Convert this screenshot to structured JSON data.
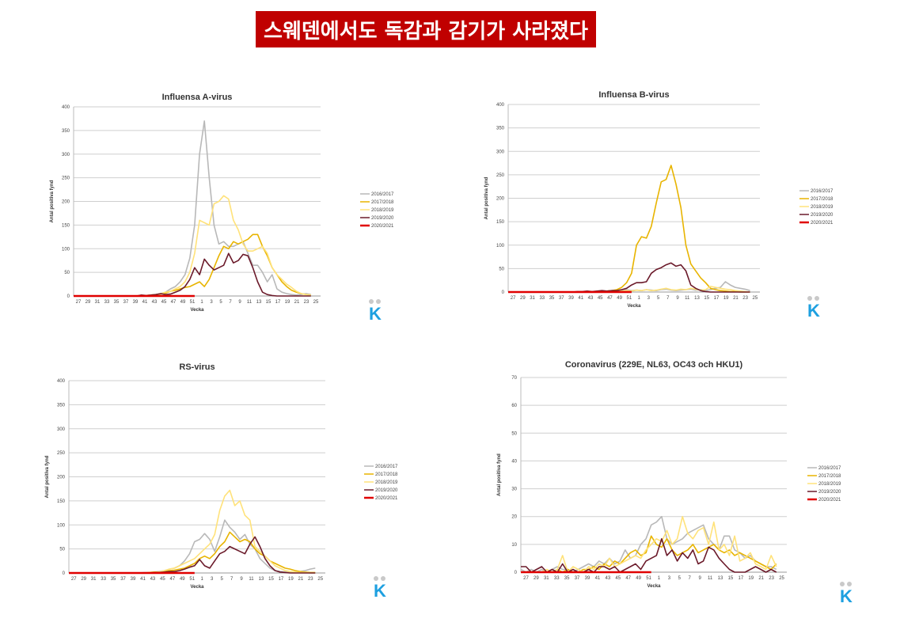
{
  "banner": {
    "title": "스웨덴에서도 독감과 감기가 사라졌다"
  },
  "logo_text": "K",
  "colors": {
    "banner_bg": "#c00000",
    "s2016": "#b8b8b8",
    "s2017": "#e8b400",
    "s2018": "#ffe27a",
    "s2019": "#6b1a2a",
    "s2020": "#e00000"
  },
  "chart_data": [
    {
      "type": "line",
      "title": "Influensa A-virus",
      "xlabel": "Vecka",
      "ylabel": "Antal positiva fynd",
      "ylim": [
        0,
        400
      ],
      "yticks": [
        0,
        50,
        100,
        150,
        200,
        250,
        300,
        350,
        400
      ],
      "xtick_labels": [
        "27",
        "29",
        "31",
        "33",
        "35",
        "37",
        "39",
        "41",
        "43",
        "45",
        "47",
        "49",
        "51",
        "1",
        "3",
        "5",
        "7",
        "9",
        "11",
        "13",
        "15",
        "17",
        "19",
        "21",
        "23",
        "25"
      ],
      "legend_position": "right",
      "series": [
        {
          "name": "2016/2017",
          "values": [
            0,
            0,
            0,
            0,
            0,
            0,
            0,
            0,
            0,
            0,
            0,
            0,
            0,
            0,
            1,
            1,
            2,
            3,
            5,
            8,
            15,
            20,
            30,
            45,
            80,
            150,
            300,
            370,
            250,
            150,
            110,
            115,
            105,
            105,
            110,
            115,
            90,
            65,
            65,
            50,
            30,
            45,
            15,
            8,
            5,
            3,
            2,
            3,
            5,
            3
          ]
        },
        {
          "name": "2017/2018",
          "values": [
            0,
            0,
            0,
            0,
            0,
            0,
            0,
            0,
            0,
            0,
            0,
            0,
            0,
            0,
            0,
            1,
            2,
            3,
            4,
            6,
            10,
            12,
            15,
            18,
            20,
            25,
            30,
            20,
            35,
            60,
            85,
            105,
            100,
            115,
            110,
            115,
            120,
            130,
            130,
            105,
            85,
            60,
            45,
            30,
            20,
            12,
            8,
            5,
            3,
            2
          ]
        },
        {
          "name": "2018/2019",
          "values": [
            0,
            0,
            0,
            0,
            0,
            0,
            0,
            0,
            0,
            0,
            0,
            0,
            0,
            0,
            1,
            1,
            2,
            3,
            5,
            8,
            10,
            15,
            20,
            30,
            50,
            90,
            160,
            155,
            150,
            195,
            200,
            212,
            205,
            160,
            140,
            110,
            95,
            95,
            100,
            105,
            90,
            60,
            45,
            35,
            25,
            18,
            10,
            5,
            3,
            2
          ]
        },
        {
          "name": "2019/2020",
          "values": [
            0,
            0,
            0,
            0,
            0,
            0,
            0,
            0,
            0,
            0,
            0,
            0,
            0,
            0,
            2,
            1,
            2,
            3,
            5,
            3,
            4,
            8,
            12,
            20,
            35,
            60,
            45,
            78,
            65,
            55,
            60,
            65,
            90,
            70,
            75,
            88,
            85,
            60,
            30,
            8,
            3,
            1,
            0,
            0,
            0,
            0,
            0,
            0,
            0,
            0
          ]
        },
        {
          "name": "2020/2021",
          "values": [
            0,
            0,
            0,
            0,
            0,
            0,
            0,
            0,
            0,
            0,
            0,
            0,
            0,
            0,
            0,
            0,
            0,
            0,
            0,
            0,
            0,
            0,
            0,
            0,
            0,
            0
          ]
        }
      ]
    },
    {
      "type": "line",
      "title": "Influensa B-virus",
      "xlabel": "Vecka",
      "ylabel": "Antal positiva fynd",
      "ylim": [
        0,
        400
      ],
      "yticks": [
        0,
        50,
        100,
        150,
        200,
        250,
        300,
        350,
        400
      ],
      "xtick_labels": [
        "27",
        "29",
        "31",
        "33",
        "35",
        "37",
        "39",
        "41",
        "43",
        "45",
        "47",
        "49",
        "51",
        "1",
        "3",
        "5",
        "7",
        "9",
        "11",
        "13",
        "15",
        "17",
        "19",
        "21",
        "23",
        "25"
      ],
      "legend_position": "right",
      "series": [
        {
          "name": "2016/2017",
          "values": [
            0,
            0,
            0,
            0,
            0,
            0,
            0,
            0,
            0,
            0,
            0,
            0,
            0,
            0,
            0,
            0,
            0,
            0,
            1,
            2,
            2,
            3,
            3,
            4,
            5,
            3,
            4,
            3,
            5,
            4,
            3,
            5,
            6,
            4,
            3,
            4,
            5,
            6,
            4,
            5,
            3,
            5,
            8,
            10,
            22,
            15,
            10,
            8,
            6,
            3
          ]
        },
        {
          "name": "2017/2018",
          "values": [
            0,
            0,
            0,
            0,
            0,
            0,
            0,
            0,
            0,
            0,
            0,
            0,
            0,
            0,
            0,
            0,
            0,
            0,
            1,
            2,
            2,
            3,
            5,
            10,
            20,
            40,
            100,
            118,
            115,
            140,
            190,
            235,
            240,
            270,
            230,
            180,
            100,
            60,
            45,
            30,
            20,
            8,
            5,
            3,
            2,
            1,
            1,
            0,
            0,
            0
          ]
        },
        {
          "name": "2018/2019",
          "values": [
            0,
            0,
            0,
            0,
            0,
            0,
            0,
            0,
            0,
            0,
            0,
            0,
            0,
            0,
            0,
            0,
            0,
            0,
            0,
            1,
            1,
            1,
            2,
            2,
            3,
            2,
            4,
            3,
            5,
            3,
            4,
            6,
            8,
            5,
            4,
            6,
            5,
            8,
            6,
            4,
            5,
            12,
            10,
            8,
            6,
            5,
            3,
            2,
            1,
            0
          ]
        },
        {
          "name": "2019/2020",
          "values": [
            0,
            0,
            0,
            0,
            0,
            0,
            0,
            0,
            0,
            0,
            0,
            0,
            0,
            0,
            1,
            1,
            2,
            1,
            2,
            3,
            2,
            3,
            3,
            5,
            8,
            15,
            20,
            20,
            22,
            40,
            48,
            52,
            58,
            62,
            55,
            58,
            45,
            15,
            8,
            3,
            1,
            0,
            0,
            0,
            0,
            0,
            0,
            0,
            0,
            0
          ]
        },
        {
          "name": "2020/2021",
          "values": [
            0,
            0,
            0,
            0,
            0,
            0,
            0,
            0,
            0,
            0,
            0,
            0,
            0,
            0,
            0,
            0,
            0,
            0,
            0,
            0,
            0,
            0,
            0,
            0,
            0,
            0
          ]
        }
      ]
    },
    {
      "type": "line",
      "title": "RS-virus",
      "xlabel": "Vecka",
      "ylabel": "Antal positiva fynd",
      "ylim": [
        0,
        400
      ],
      "yticks": [
        0,
        50,
        100,
        150,
        200,
        250,
        300,
        350,
        400
      ],
      "xtick_labels": [
        "27",
        "29",
        "31",
        "33",
        "35",
        "37",
        "39",
        "41",
        "43",
        "45",
        "47",
        "49",
        "51",
        "1",
        "3",
        "5",
        "7",
        "9",
        "11",
        "13",
        "15",
        "17",
        "19",
        "21",
        "23",
        "25"
      ],
      "legend_position": "right",
      "series": [
        {
          "name": "2016/2017",
          "values": [
            0,
            0,
            0,
            0,
            0,
            0,
            0,
            0,
            0,
            0,
            0,
            0,
            0,
            0,
            0,
            1,
            1,
            2,
            3,
            5,
            8,
            10,
            15,
            25,
            40,
            65,
            70,
            82,
            70,
            45,
            75,
            110,
            95,
            85,
            70,
            80,
            60,
            50,
            30,
            20,
            10,
            5,
            3,
            2,
            1,
            2,
            3,
            5,
            8,
            10
          ]
        },
        {
          "name": "2017/2018",
          "values": [
            0,
            0,
            0,
            0,
            0,
            0,
            0,
            0,
            0,
            0,
            0,
            0,
            0,
            0,
            0,
            0,
            1,
            2,
            2,
            3,
            5,
            6,
            8,
            10,
            15,
            20,
            30,
            35,
            30,
            40,
            55,
            65,
            85,
            75,
            65,
            70,
            65,
            50,
            40,
            35,
            25,
            20,
            15,
            10,
            8,
            5,
            3,
            2,
            1,
            1
          ]
        },
        {
          "name": "2018/2019",
          "values": [
            0,
            0,
            0,
            0,
            0,
            0,
            0,
            0,
            0,
            0,
            0,
            0,
            0,
            0,
            0,
            0,
            0,
            1,
            2,
            5,
            8,
            10,
            15,
            20,
            25,
            30,
            40,
            50,
            60,
            80,
            130,
            160,
            172,
            140,
            150,
            120,
            110,
            55,
            45,
            35,
            25,
            15,
            10,
            5,
            3,
            2,
            1,
            1,
            0,
            0
          ]
        },
        {
          "name": "2019/2020",
          "values": [
            0,
            0,
            0,
            0,
            0,
            0,
            0,
            0,
            0,
            0,
            0,
            0,
            0,
            0,
            0,
            0,
            0,
            1,
            1,
            2,
            3,
            3,
            5,
            8,
            12,
            15,
            28,
            15,
            10,
            25,
            40,
            45,
            55,
            50,
            45,
            40,
            60,
            75,
            55,
            30,
            15,
            5,
            2,
            1,
            0,
            0,
            0,
            0,
            0,
            0
          ]
        },
        {
          "name": "2020/2021",
          "values": [
            0,
            0,
            0,
            0,
            0,
            0,
            0,
            0,
            0,
            0,
            0,
            0,
            0,
            0,
            0,
            0,
            0,
            0,
            0,
            0,
            0,
            0,
            0,
            0,
            0,
            0
          ]
        }
      ]
    },
    {
      "type": "line",
      "title": "Coronavirus (229E, NL63, OC43 och HKU1)",
      "xlabel": "Vecka",
      "ylabel": "Antal positiva fynd",
      "ylim": [
        0,
        70
      ],
      "yticks": [
        0,
        10,
        20,
        30,
        40,
        50,
        60,
        70
      ],
      "xtick_labels": [
        "27",
        "29",
        "31",
        "33",
        "35",
        "37",
        "39",
        "41",
        "43",
        "45",
        "47",
        "49",
        "51",
        "1",
        "3",
        "5",
        "7",
        "9",
        "11",
        "13",
        "15",
        "17",
        "19",
        "21",
        "23",
        "25"
      ],
      "legend_position": "right",
      "series": [
        {
          "name": "2016/2017",
          "values": [
            1,
            0,
            1,
            0,
            1,
            0,
            1,
            2,
            1,
            1,
            0,
            1,
            2,
            3,
            2,
            4,
            3,
            5,
            3,
            4,
            8,
            5,
            6,
            10,
            12,
            17,
            18,
            20,
            12,
            10,
            11,
            12,
            14,
            15,
            16,
            17,
            12,
            10,
            8,
            13,
            13,
            8,
            7,
            5,
            6,
            4,
            3,
            2,
            2,
            1
          ]
        },
        {
          "name": "2017/2018",
          "values": [
            0,
            0,
            0,
            0,
            0,
            0,
            0,
            1,
            0,
            1,
            0,
            0,
            1,
            1,
            2,
            1,
            3,
            2,
            4,
            3,
            5,
            7,
            8,
            6,
            7,
            13,
            10,
            9,
            12,
            8,
            6,
            7,
            8,
            10,
            7,
            8,
            9,
            10,
            8,
            7,
            8,
            6,
            7,
            6,
            5,
            4,
            3,
            2,
            1,
            3
          ]
        },
        {
          "name": "2018/2019",
          "values": [
            0,
            0,
            0,
            0,
            0,
            1,
            0,
            1,
            6,
            0,
            2,
            1,
            0,
            2,
            1,
            3,
            2,
            5,
            2,
            3,
            4,
            5,
            6,
            5,
            8,
            10,
            12,
            11,
            15,
            10,
            12,
            20,
            14,
            12,
            15,
            16,
            10,
            18,
            8,
            10,
            6,
            13,
            4,
            5,
            7,
            3,
            2,
            1,
            6,
            2
          ]
        },
        {
          "name": "2019/2020",
          "values": [
            2,
            2,
            0,
            1,
            2,
            0,
            1,
            0,
            3,
            0,
            1,
            0,
            0,
            1,
            0,
            2,
            2,
            1,
            2,
            0,
            1,
            2,
            3,
            1,
            4,
            5,
            6,
            12,
            6,
            8,
            4,
            7,
            5,
            8,
            3,
            4,
            9,
            8,
            5,
            3,
            1,
            0,
            0,
            0,
            1,
            2,
            1,
            0,
            1,
            0
          ]
        },
        {
          "name": "2020/2021",
          "values": [
            0,
            0,
            0,
            0,
            0,
            0,
            0,
            0,
            0,
            0,
            0,
            0,
            0,
            0,
            0,
            0,
            0,
            0,
            0,
            0,
            0,
            0,
            0,
            0,
            0,
            0
          ]
        }
      ]
    }
  ]
}
